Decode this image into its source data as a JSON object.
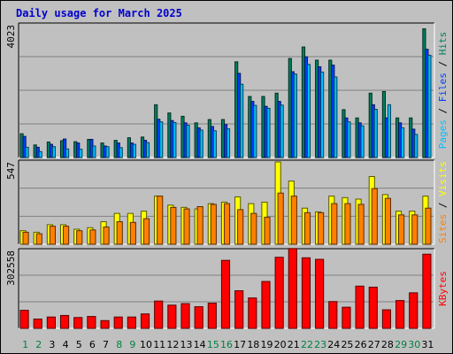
{
  "chart_data": {
    "type": "bar",
    "title": "Daily usage for March 2025",
    "categories": [
      "1",
      "2",
      "3",
      "4",
      "5",
      "6",
      "7",
      "8",
      "9",
      "10",
      "11",
      "12",
      "13",
      "14",
      "15",
      "16",
      "17",
      "18",
      "19",
      "20",
      "21",
      "22",
      "23",
      "24",
      "25",
      "26",
      "27",
      "28",
      "29",
      "30",
      "31"
    ],
    "weekend_days": [
      "1",
      "2",
      "8",
      "9",
      "15",
      "16",
      "22",
      "23",
      "29",
      "30"
    ],
    "panels": [
      {
        "name": "hits-files-pages",
        "ymax_label": "4023",
        "ymax": 4023,
        "axis_label_parts": [
          {
            "text": "Pages",
            "color": "#00c0ff"
          },
          {
            "text": " / ",
            "color": "#000000"
          },
          {
            "text": "Files",
            "color": "#0040ff"
          },
          {
            "text": " / ",
            "color": "#000000"
          },
          {
            "text": "Hits",
            "color": "#008060"
          }
        ],
        "series": [
          {
            "name": "Hits",
            "color": "#008060",
            "values": [
              720,
              380,
              470,
              510,
              480,
              550,
              440,
              520,
              600,
              620,
              1600,
              1350,
              1250,
              1050,
              1150,
              1150,
              2900,
              1850,
              1850,
              1950,
              3000,
              3350,
              2950,
              2950,
              1450,
              1200,
              1950,
              2000,
              1200,
              1200,
              1700
            ]
          },
          {
            "name": "Files",
            "color": "#0040ff",
            "values": [
              640,
              310,
              400,
              560,
              440,
              550,
              350,
              440,
              440,
              520,
              1160,
              1120,
              1050,
              900,
              940,
              1000,
              2550,
              1700,
              1550,
              1700,
              2600,
              3050,
              2750,
              2800,
              1200,
              1050,
              1600,
              1200,
              1050,
              860,
              1400
            ]
          },
          {
            "name": "Pages",
            "color": "#00c0ff",
            "values": [
              310,
              180,
              330,
              260,
              250,
              350,
              330,
              300,
              400,
              450,
              1080,
              1060,
              980,
              830,
              810,
              870,
              2220,
              1580,
              1490,
              1590,
              2530,
              2820,
              2590,
              2440,
              1080,
              960,
              1460,
              1600,
              900,
              700,
              1360
            ]
          }
        ],
        "extra_values": {
          "31_hits": 3900,
          "31_files": 3280,
          "31_pages": 3100
        }
      },
      {
        "name": "visits-sites",
        "ymax_label": "547",
        "ymax": 547,
        "axis_label_parts": [
          {
            "text": "Sites",
            "color": "#ff8000"
          },
          {
            "text": " / ",
            "color": "#000000"
          },
          {
            "text": "Visits",
            "color": "#ffff00"
          }
        ],
        "series": [
          {
            "name": "Visits",
            "color": "#ffff00",
            "values": [
              90,
              80,
              130,
              130,
              100,
              110,
              150,
              205,
              205,
              220,
              320,
              260,
              245,
              235,
              270,
              280,
              315,
              270,
              280,
              547,
              420,
              240,
              215,
              320,
              310,
              300,
              450,
              330,
              220,
              220,
              320
            ]
          },
          {
            "name": "Sites",
            "color": "#ff8000",
            "values": [
              80,
              70,
              120,
              120,
              90,
              95,
              115,
              150,
              145,
              170,
              320,
              245,
              235,
              250,
              265,
              270,
              230,
              205,
              180,
              340,
              320,
              210,
              210,
              270,
              270,
              265,
              370,
              305,
              195,
              195,
              240
            ]
          }
        ]
      },
      {
        "name": "kbytes",
        "ymax_label": "302558",
        "ymax": 302558,
        "axis_label_parts": [
          {
            "text": "KBytes",
            "color": "#ff0000"
          }
        ],
        "series": [
          {
            "name": "KBytes",
            "color": "#ff0000",
            "values": [
              70000,
              36000,
              44000,
              50000,
              42000,
              46000,
              30000,
              44000,
              44000,
              56000,
              106000,
              90000,
              96000,
              84000,
              98000,
              264000,
              146000,
              118000,
              182000,
              276000,
              310000,
              274000,
              268000,
              104000,
              82000,
              164000,
              160000,
              72000,
              108000,
              138000,
              288000
            ]
          }
        ]
      }
    ]
  }
}
